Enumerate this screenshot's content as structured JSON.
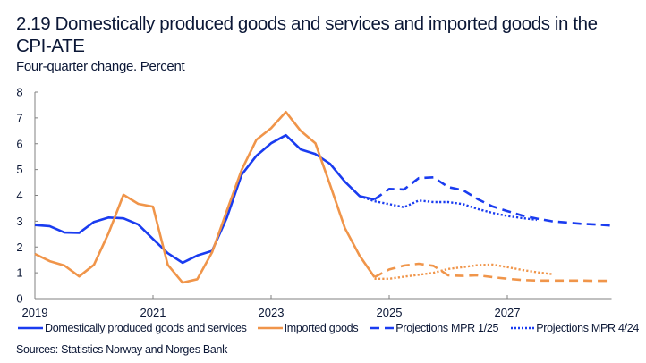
{
  "header": {
    "title": "2.19 Domestically produced goods and services and imported goods in the CPI-ATE",
    "subtitle": "Four-quarter change. Percent"
  },
  "source": "Sources: Statistics Norway and Norges Bank",
  "colors": {
    "domestic": "#1a3cf0",
    "imported": "#f0954a",
    "axis": "#808080"
  },
  "chart_data": {
    "type": "line",
    "title": "2.19 Domestically produced goods and services and imported goods in the CPI-ATE",
    "subtitle": "Four-quarter change. Percent",
    "xlabel": "",
    "ylabel": "Percent",
    "ylim": [
      0,
      8
    ],
    "yticks": [
      0,
      1,
      2,
      3,
      4,
      5,
      6,
      7,
      8
    ],
    "xlim": [
      "2019Q1",
      "2028Q4"
    ],
    "xticks": [
      "2019",
      "2021",
      "2023",
      "2025",
      "2027"
    ],
    "grid": false,
    "legend_position": "bottom",
    "legend": [
      {
        "label": "Domestically produced goods and services",
        "style": "solid",
        "color": "domestic"
      },
      {
        "label": "Imported goods",
        "style": "solid",
        "color": "imported"
      },
      {
        "label": "Projections MPR 1/25",
        "style": "dashed",
        "color": "domestic"
      },
      {
        "label": "Projections MPR 4/24",
        "style": "dotted",
        "color": "domestic"
      }
    ],
    "series": [
      {
        "name": "Domestically produced goods and services",
        "color": "domestic",
        "style": "solid",
        "start": "2019Q1",
        "values": [
          2.85,
          2.81,
          2.56,
          2.55,
          2.97,
          3.14,
          3.11,
          2.87,
          2.31,
          1.76,
          1.39,
          1.67,
          1.85,
          3.13,
          4.8,
          5.53,
          6.02,
          6.33,
          5.78,
          5.6,
          5.22,
          4.53,
          3.97,
          3.84
        ]
      },
      {
        "name": "Imported goods",
        "color": "imported",
        "style": "solid",
        "start": "2019Q1",
        "values": [
          1.73,
          1.45,
          1.28,
          0.86,
          1.31,
          2.55,
          4.02,
          3.67,
          3.56,
          1.31,
          0.62,
          0.75,
          1.79,
          3.4,
          4.98,
          6.15,
          6.6,
          7.23,
          6.5,
          6.02,
          4.4,
          2.73,
          1.66,
          0.83
        ]
      },
      {
        "name": "Domestically produced goods and services – Projections MPR 1/25",
        "color": "domestic",
        "style": "dashed",
        "start": "2024Q4",
        "values": [
          3.84,
          4.25,
          4.23,
          4.67,
          4.7,
          4.32,
          4.2,
          3.85,
          3.57,
          3.39,
          3.22,
          3.1,
          3.0,
          2.95,
          2.9,
          2.87,
          2.83
        ]
      },
      {
        "name": "Domestically produced goods and services – Projections MPR 4/24",
        "color": "domestic",
        "style": "dotted",
        "start": "2024Q3",
        "values": [
          3.97,
          3.77,
          3.66,
          3.54,
          3.8,
          3.74,
          3.74,
          3.66,
          3.47,
          3.32,
          3.2,
          3.12,
          3.05
        ]
      },
      {
        "name": "Imported goods – Projections MPR 1/25",
        "color": "imported",
        "style": "dashed",
        "start": "2024Q4",
        "values": [
          0.83,
          1.13,
          1.28,
          1.35,
          1.27,
          0.9,
          0.88,
          0.9,
          0.83,
          0.77,
          0.72,
          0.7,
          0.7,
          0.7,
          0.7,
          0.69,
          0.69
        ]
      },
      {
        "name": "Imported goods – Projections MPR 4/24",
        "color": "imported",
        "style": "dotted",
        "start": "2024Q4",
        "values": [
          0.77,
          0.77,
          0.85,
          0.92,
          1.0,
          1.15,
          1.22,
          1.3,
          1.32,
          1.22,
          1.11,
          1.02,
          0.95
        ]
      }
    ]
  }
}
